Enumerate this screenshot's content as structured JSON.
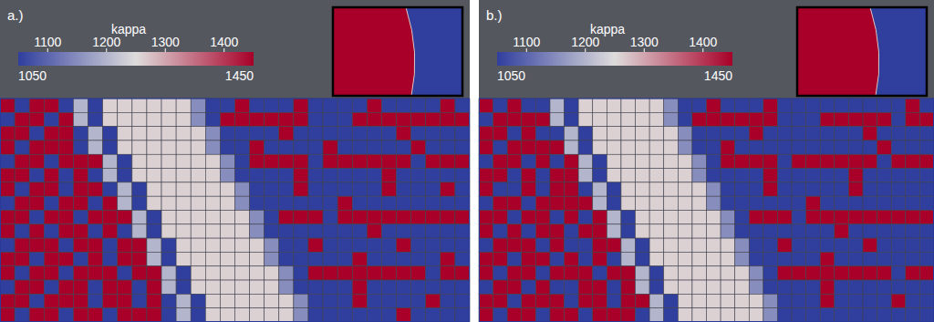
{
  "chart_data": [
    {
      "type": "heatmap",
      "title": "a.)",
      "colorbar_label": "kappa",
      "colorbar_range": [
        1050,
        1450
      ],
      "colorbar_ticks": [
        1100,
        1200,
        1300,
        1400
      ],
      "cells": [
        [
          1450,
          1050,
          1450,
          1450,
          1050,
          1200,
          1050,
          1260,
          1260,
          1260,
          1260,
          1260,
          1260,
          1150,
          1050,
          1050,
          1450,
          1050,
          1050,
          1050,
          1450,
          1050,
          1050,
          1050,
          1050,
          1450,
          1050,
          1050,
          1050,
          1050,
          1450,
          1050
        ],
        [
          1050,
          1450,
          1450,
          1050,
          1450,
          1200,
          1050,
          1260,
          1260,
          1260,
          1260,
          1260,
          1260,
          1150,
          1050,
          1450,
          1450,
          1450,
          1450,
          1450,
          1450,
          1050,
          1050,
          1050,
          1450,
          1450,
          1450,
          1450,
          1450,
          1450,
          1450,
          1450
        ],
        [
          1450,
          1450,
          1050,
          1450,
          1450,
          1050,
          1200,
          1050,
          1260,
          1260,
          1260,
          1260,
          1260,
          1260,
          1150,
          1050,
          1050,
          1050,
          1050,
          1450,
          1050,
          1050,
          1050,
          1050,
          1050,
          1050,
          1050,
          1450,
          1050,
          1050,
          1050,
          1050
        ],
        [
          1450,
          1050,
          1450,
          1450,
          1450,
          1050,
          1200,
          1050,
          1260,
          1260,
          1260,
          1260,
          1260,
          1260,
          1150,
          1050,
          1050,
          1450,
          1050,
          1050,
          1050,
          1050,
          1450,
          1050,
          1050,
          1050,
          1050,
          1050,
          1450,
          1050,
          1050,
          1050
        ],
        [
          1050,
          1450,
          1450,
          1050,
          1450,
          1450,
          1450,
          1200,
          1050,
          1260,
          1260,
          1260,
          1260,
          1260,
          1260,
          1150,
          1050,
          1450,
          1450,
          1450,
          1450,
          1050,
          1450,
          1450,
          1450,
          1450,
          1450,
          1450,
          1050,
          1450,
          1450,
          1450
        ],
        [
          1450,
          1450,
          1050,
          1450,
          1050,
          1450,
          1050,
          1200,
          1050,
          1260,
          1260,
          1260,
          1260,
          1260,
          1260,
          1150,
          1050,
          1050,
          1050,
          1050,
          1450,
          1050,
          1050,
          1050,
          1050,
          1050,
          1450,
          1050,
          1050,
          1050,
          1050,
          1050
        ],
        [
          1450,
          1050,
          1450,
          1450,
          1050,
          1450,
          1450,
          1050,
          1200,
          1050,
          1260,
          1260,
          1260,
          1260,
          1260,
          1260,
          1150,
          1050,
          1050,
          1050,
          1450,
          1050,
          1050,
          1050,
          1050,
          1050,
          1450,
          1050,
          1050,
          1050,
          1450,
          1050
        ],
        [
          1050,
          1450,
          1450,
          1050,
          1450,
          1450,
          1050,
          1450,
          1200,
          1050,
          1260,
          1260,
          1260,
          1260,
          1260,
          1260,
          1150,
          1050,
          1050,
          1050,
          1050,
          1050,
          1050,
          1450,
          1050,
          1050,
          1050,
          1050,
          1050,
          1050,
          1050,
          1050
        ],
        [
          1450,
          1450,
          1050,
          1450,
          1450,
          1050,
          1450,
          1450,
          1450,
          1200,
          1050,
          1260,
          1260,
          1260,
          1260,
          1260,
          1260,
          1150,
          1050,
          1450,
          1450,
          1450,
          1050,
          1450,
          1450,
          1450,
          1450,
          1450,
          1450,
          1450,
          1450,
          1450
        ],
        [
          1450,
          1050,
          1450,
          1050,
          1450,
          1450,
          1050,
          1450,
          1050,
          1200,
          1050,
          1260,
          1260,
          1260,
          1260,
          1260,
          1260,
          1150,
          1050,
          1050,
          1050,
          1050,
          1050,
          1050,
          1050,
          1450,
          1050,
          1050,
          1050,
          1050,
          1050,
          1050
        ],
        [
          1050,
          1450,
          1450,
          1450,
          1050,
          1450,
          1450,
          1050,
          1450,
          1450,
          1200,
          1050,
          1260,
          1260,
          1260,
          1260,
          1260,
          1260,
          1150,
          1050,
          1050,
          1450,
          1050,
          1050,
          1050,
          1050,
          1050,
          1450,
          1050,
          1050,
          1050,
          1050
        ],
        [
          1450,
          1450,
          1050,
          1450,
          1450,
          1050,
          1450,
          1050,
          1450,
          1450,
          1200,
          1050,
          1260,
          1260,
          1260,
          1260,
          1260,
          1260,
          1150,
          1050,
          1050,
          1050,
          1050,
          1050,
          1450,
          1050,
          1050,
          1050,
          1050,
          1050,
          1450,
          1050
        ],
        [
          1450,
          1050,
          1450,
          1450,
          1050,
          1450,
          1450,
          1450,
          1050,
          1450,
          1450,
          1200,
          1050,
          1260,
          1260,
          1260,
          1260,
          1260,
          1260,
          1150,
          1050,
          1450,
          1450,
          1450,
          1450,
          1450,
          1450,
          1450,
          1450,
          1050,
          1450,
          1450
        ],
        [
          1050,
          1450,
          1450,
          1050,
          1450,
          1450,
          1050,
          1450,
          1450,
          1050,
          1450,
          1200,
          1050,
          1260,
          1260,
          1260,
          1260,
          1260,
          1260,
          1150,
          1050,
          1050,
          1050,
          1050,
          1450,
          1050,
          1050,
          1050,
          1050,
          1050,
          1050,
          1050
        ],
        [
          1450,
          1450,
          1050,
          1450,
          1450,
          1450,
          1050,
          1450,
          1450,
          1050,
          1450,
          1050,
          1200,
          1050,
          1260,
          1260,
          1260,
          1260,
          1260,
          1260,
          1150,
          1050,
          1050,
          1050,
          1450,
          1050,
          1050,
          1050,
          1050,
          1450,
          1050,
          1050
        ],
        [
          1450,
          1050,
          1450,
          1450,
          1050,
          1450,
          1450,
          1050,
          1450,
          1450,
          1450,
          1050,
          1200,
          1050,
          1260,
          1260,
          1260,
          1260,
          1260,
          1260,
          1150,
          1050,
          1050,
          1050,
          1050,
          1050,
          1050,
          1450,
          1050,
          1050,
          1050,
          1050
        ]
      ]
    },
    {
      "type": "heatmap",
      "title": "b.)",
      "colorbar_label": "kappa",
      "colorbar_range": [
        1050,
        1450
      ],
      "colorbar_ticks": [
        1100,
        1200,
        1300,
        1400
      ],
      "cells": [
        [
          1450,
          1050,
          1450,
          1050,
          1050,
          1200,
          1050,
          1260,
          1260,
          1260,
          1260,
          1260,
          1260,
          1150,
          1050,
          1050,
          1450,
          1050,
          1050,
          1050,
          1450,
          1050,
          1050,
          1050,
          1050,
          1050,
          1050,
          1050,
          1050,
          1050,
          1450,
          1050
        ],
        [
          1050,
          1450,
          1450,
          1450,
          1450,
          1200,
          1050,
          1260,
          1260,
          1260,
          1260,
          1260,
          1260,
          1150,
          1050,
          1450,
          1450,
          1450,
          1450,
          1450,
          1450,
          1050,
          1050,
          1050,
          1450,
          1450,
          1450,
          1450,
          1450,
          1050,
          1450,
          1450
        ],
        [
          1450,
          1450,
          1050,
          1450,
          1050,
          1050,
          1200,
          1050,
          1260,
          1260,
          1260,
          1260,
          1260,
          1260,
          1150,
          1050,
          1050,
          1050,
          1050,
          1450,
          1050,
          1050,
          1050,
          1050,
          1050,
          1050,
          1050,
          1450,
          1050,
          1050,
          1050,
          1050
        ],
        [
          1450,
          1050,
          1450,
          1450,
          1450,
          1450,
          1200,
          1050,
          1260,
          1260,
          1260,
          1260,
          1260,
          1260,
          1150,
          1050,
          1050,
          1450,
          1050,
          1050,
          1050,
          1050,
          1050,
          1050,
          1050,
          1050,
          1050,
          1050,
          1450,
          1050,
          1050,
          1050
        ],
        [
          1050,
          1450,
          1450,
          1050,
          1450,
          1050,
          1450,
          1200,
          1050,
          1260,
          1260,
          1260,
          1260,
          1260,
          1260,
          1150,
          1050,
          1450,
          1450,
          1450,
          1450,
          1050,
          1450,
          1450,
          1450,
          1450,
          1450,
          1450,
          1050,
          1450,
          1450,
          1450
        ],
        [
          1450,
          1450,
          1050,
          1450,
          1050,
          1450,
          1450,
          1200,
          1050,
          1260,
          1260,
          1260,
          1260,
          1260,
          1260,
          1150,
          1050,
          1050,
          1050,
          1050,
          1450,
          1050,
          1050,
          1050,
          1050,
          1050,
          1450,
          1050,
          1050,
          1050,
          1050,
          1050
        ],
        [
          1450,
          1050,
          1050,
          1450,
          1050,
          1450,
          1450,
          1050,
          1200,
          1050,
          1260,
          1260,
          1260,
          1260,
          1260,
          1260,
          1150,
          1050,
          1050,
          1050,
          1450,
          1050,
          1050,
          1050,
          1050,
          1050,
          1450,
          1050,
          1050,
          1050,
          1050,
          1050
        ],
        [
          1050,
          1450,
          1450,
          1050,
          1450,
          1450,
          1450,
          1450,
          1200,
          1050,
          1260,
          1260,
          1260,
          1260,
          1260,
          1260,
          1150,
          1050,
          1050,
          1050,
          1050,
          1050,
          1050,
          1450,
          1050,
          1050,
          1050,
          1050,
          1050,
          1050,
          1050,
          1050
        ],
        [
          1450,
          1450,
          1050,
          1450,
          1450,
          1050,
          1450,
          1050,
          1450,
          1200,
          1050,
          1260,
          1260,
          1260,
          1260,
          1260,
          1260,
          1150,
          1050,
          1450,
          1450,
          1450,
          1050,
          1450,
          1450,
          1450,
          1450,
          1450,
          1450,
          1450,
          1450,
          1450
        ],
        [
          1450,
          1050,
          1450,
          1050,
          1450,
          1450,
          1050,
          1450,
          1450,
          1200,
          1050,
          1260,
          1260,
          1260,
          1260,
          1260,
          1260,
          1150,
          1050,
          1050,
          1050,
          1050,
          1050,
          1050,
          1050,
          1450,
          1050,
          1050,
          1050,
          1050,
          1050,
          1050
        ],
        [
          1050,
          1450,
          1450,
          1450,
          1050,
          1450,
          1050,
          1050,
          1450,
          1450,
          1200,
          1050,
          1260,
          1260,
          1260,
          1260,
          1260,
          1260,
          1150,
          1050,
          1050,
          1450,
          1050,
          1050,
          1050,
          1050,
          1050,
          1450,
          1050,
          1050,
          1050,
          1050
        ],
        [
          1450,
          1450,
          1050,
          1450,
          1450,
          1050,
          1450,
          1050,
          1450,
          1050,
          1200,
          1050,
          1260,
          1260,
          1260,
          1260,
          1260,
          1260,
          1150,
          1050,
          1050,
          1050,
          1050,
          1050,
          1450,
          1050,
          1050,
          1050,
          1050,
          1050,
          1050,
          1050
        ],
        [
          1450,
          1050,
          1450,
          1450,
          1050,
          1450,
          1450,
          1450,
          1050,
          1450,
          1450,
          1200,
          1050,
          1260,
          1260,
          1260,
          1260,
          1260,
          1260,
          1150,
          1050,
          1450,
          1450,
          1450,
          1450,
          1450,
          1450,
          1450,
          1450,
          1050,
          1450,
          1450
        ],
        [
          1050,
          1450,
          1450,
          1050,
          1450,
          1050,
          1050,
          1450,
          1450,
          1050,
          1450,
          1200,
          1050,
          1260,
          1260,
          1260,
          1260,
          1260,
          1260,
          1150,
          1050,
          1050,
          1050,
          1050,
          1450,
          1050,
          1050,
          1050,
          1050,
          1050,
          1050,
          1050
        ],
        [
          1450,
          1450,
          1050,
          1450,
          1450,
          1450,
          1050,
          1450,
          1450,
          1050,
          1450,
          1450,
          1200,
          1050,
          1260,
          1260,
          1260,
          1260,
          1260,
          1260,
          1150,
          1050,
          1050,
          1050,
          1450,
          1050,
          1050,
          1050,
          1050,
          1450,
          1050,
          1050
        ],
        [
          1450,
          1050,
          1450,
          1450,
          1050,
          1450,
          1450,
          1050,
          1450,
          1450,
          1450,
          1050,
          1200,
          1050,
          1260,
          1260,
          1260,
          1260,
          1260,
          1260,
          1150,
          1050,
          1050,
          1050,
          1050,
          1050,
          1050,
          1050,
          1050,
          1050,
          1050,
          1050
        ]
      ]
    }
  ]
}
